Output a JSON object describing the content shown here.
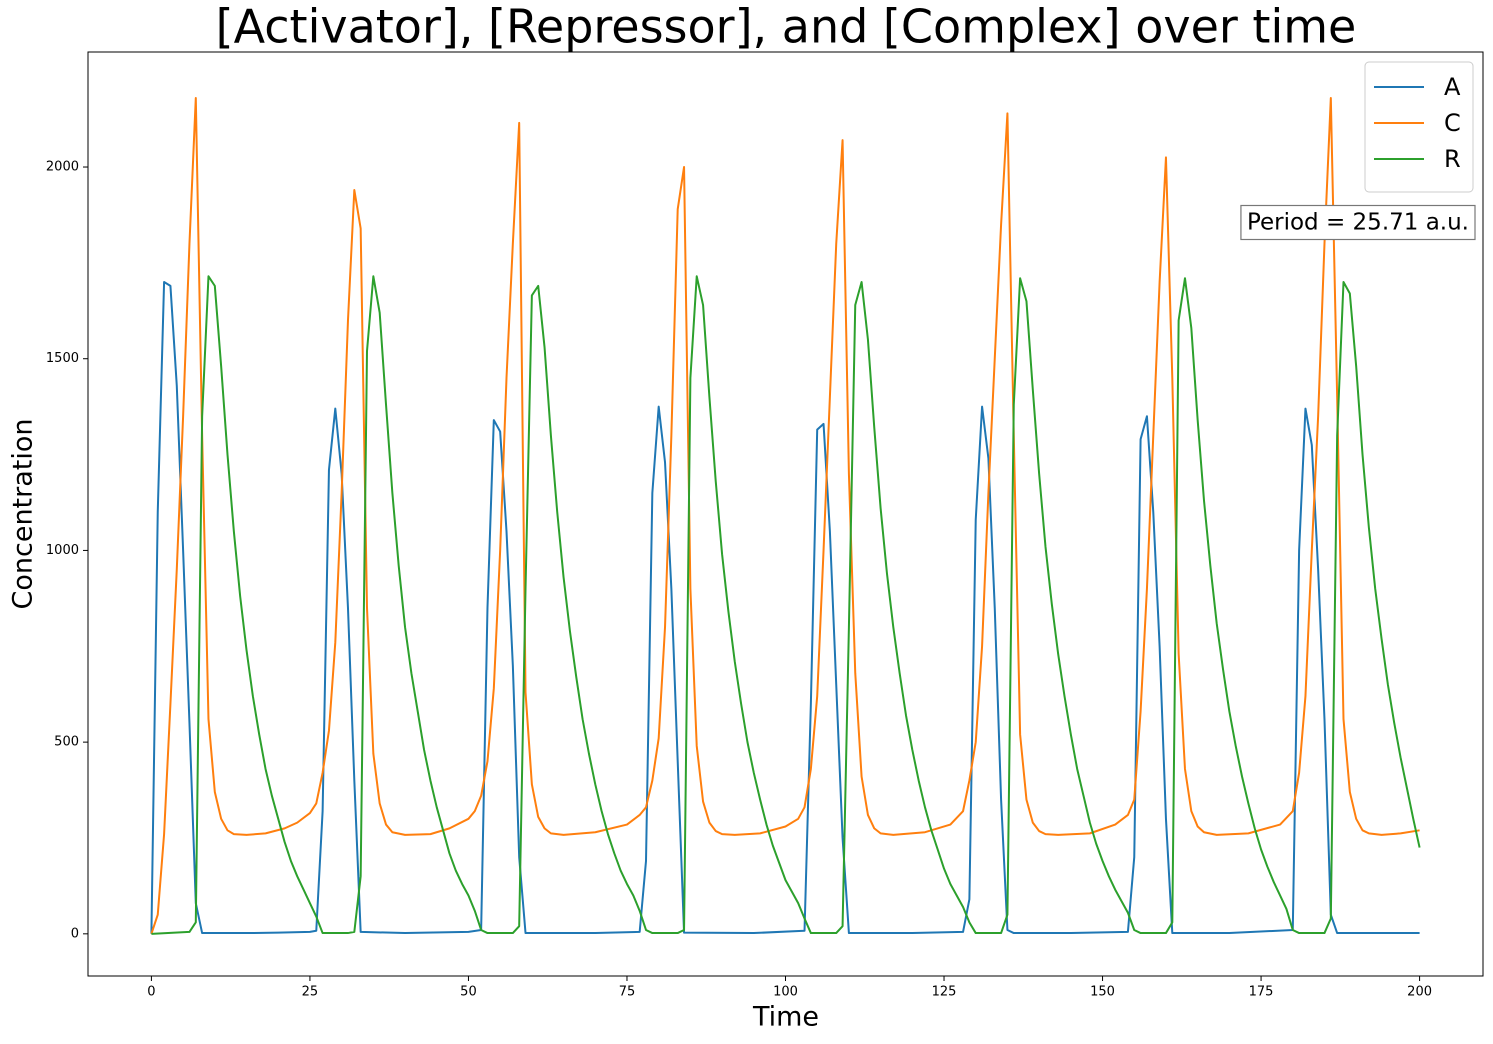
{
  "chart_data": {
    "type": "line",
    "title": "[Activator], [Repressor], and [Complex] over time",
    "xlabel": "Time",
    "ylabel": "Concentration",
    "annotation": "Period = 25.71 a.u.",
    "legend": "upper right",
    "xlim": [
      -10,
      210
    ],
    "ylim": [
      -110,
      2300
    ],
    "xticks": [
      0,
      25,
      50,
      75,
      100,
      125,
      150,
      175,
      200
    ],
    "yticks": [
      0,
      500,
      1000,
      1500,
      2000
    ],
    "series": [
      {
        "name": "A",
        "color": "#1f77b4",
        "x": [
          0,
          1,
          2,
          3,
          4,
          5,
          6,
          7,
          8,
          15,
          20,
          25,
          26,
          27,
          28,
          29,
          30,
          31,
          32,
          33,
          40,
          50,
          52,
          53,
          54,
          55,
          56,
          57,
          58,
          59,
          70,
          77,
          78,
          79,
          80,
          81,
          82,
          83,
          84,
          95,
          103,
          104,
          105,
          106,
          107,
          108,
          109,
          110,
          120,
          128,
          129,
          130,
          131,
          132,
          133,
          134,
          135,
          136,
          145,
          154,
          155,
          156,
          157,
          158,
          159,
          160,
          161,
          170,
          180,
          181,
          182,
          183,
          184,
          185,
          186,
          187,
          200
        ],
        "values": [
          0,
          1100,
          1700,
          1690,
          1430,
          1000,
          550,
          80,
          2,
          2,
          3,
          5,
          8,
          320,
          1210,
          1370,
          1200,
          850,
          400,
          5,
          2,
          5,
          10,
          850,
          1340,
          1310,
          1050,
          700,
          200,
          2,
          2,
          5,
          190,
          1150,
          1375,
          1230,
          900,
          450,
          3,
          2,
          8,
          600,
          1315,
          1330,
          1050,
          650,
          250,
          2,
          2,
          5,
          90,
          1080,
          1375,
          1240,
          850,
          350,
          10,
          2,
          2,
          5,
          200,
          1290,
          1350,
          1100,
          750,
          300,
          2,
          2,
          10,
          1000,
          1370,
          1275,
          950,
          560,
          50,
          2,
          2
        ]
      },
      {
        "name": "C",
        "color": "#ff7f0e",
        "x": [
          0,
          1,
          2,
          3,
          4,
          5,
          6,
          7,
          8,
          9,
          10,
          11,
          12,
          13,
          15,
          18,
          21,
          23,
          25,
          26,
          27,
          28,
          29,
          30,
          31,
          32,
          33,
          34,
          35,
          36,
          37,
          38,
          40,
          44,
          47,
          50,
          51,
          52,
          53,
          54,
          55,
          56,
          57,
          58,
          59,
          60,
          61,
          62,
          63,
          65,
          70,
          75,
          77,
          78,
          79,
          80,
          81,
          82,
          83,
          84,
          85,
          86,
          87,
          88,
          89,
          90,
          92,
          96,
          100,
          102,
          103,
          104,
          105,
          106,
          107,
          108,
          109,
          110,
          111,
          112,
          113,
          114,
          115,
          117,
          122,
          126,
          128,
          129,
          130,
          131,
          132,
          133,
          134,
          135,
          136,
          137,
          138,
          139,
          140,
          141,
          143,
          148,
          152,
          154,
          155,
          156,
          157,
          158,
          159,
          160,
          161,
          162,
          163,
          164,
          165,
          166,
          168,
          173,
          178,
          180,
          181,
          182,
          183,
          184,
          185,
          186,
          187,
          188,
          189,
          190,
          191,
          192,
          194,
          197,
          200
        ],
        "values": [
          0,
          50,
          260,
          600,
          950,
          1350,
          1800,
          2180,
          1300,
          560,
          370,
          300,
          270,
          260,
          258,
          262,
          275,
          290,
          315,
          340,
          420,
          530,
          760,
          1150,
          1600,
          1940,
          1840,
          850,
          470,
          340,
          285,
          265,
          258,
          260,
          275,
          300,
          320,
          360,
          450,
          640,
          1000,
          1450,
          1800,
          2115,
          630,
          390,
          305,
          275,
          262,
          258,
          265,
          285,
          310,
          330,
          400,
          510,
          800,
          1300,
          1890,
          2000,
          900,
          490,
          345,
          290,
          268,
          260,
          258,
          262,
          280,
          300,
          330,
          430,
          620,
          1000,
          1400,
          1800,
          2070,
          1200,
          680,
          410,
          310,
          275,
          262,
          258,
          265,
          285,
          320,
          400,
          500,
          750,
          1150,
          1500,
          1850,
          2140,
          1300,
          520,
          350,
          290,
          268,
          260,
          258,
          262,
          285,
          310,
          350,
          580,
          900,
          1300,
          1700,
          2025,
          1450,
          730,
          430,
          320,
          280,
          265,
          258,
          262,
          285,
          320,
          420,
          620,
          1000,
          1350,
          1800,
          2180,
          1400,
          560,
          370,
          300,
          270,
          262,
          258,
          262,
          270
        ]
      },
      {
        "name": "R",
        "color": "#2ca02c",
        "x": [
          0,
          6,
          7,
          8,
          9,
          10,
          11,
          12,
          13,
          14,
          15,
          16,
          17,
          18,
          19,
          20,
          21,
          22,
          23,
          24,
          25,
          26,
          27,
          31,
          32,
          33,
          34,
          35,
          36,
          37,
          38,
          39,
          40,
          41,
          42,
          43,
          44,
          45,
          46,
          47,
          48,
          49,
          50,
          51,
          52,
          53,
          57,
          58,
          59,
          60,
          61,
          62,
          63,
          64,
          65,
          66,
          67,
          68,
          69,
          70,
          71,
          72,
          73,
          74,
          75,
          76,
          77,
          78,
          79,
          83,
          84,
          85,
          86,
          87,
          88,
          89,
          90,
          91,
          92,
          93,
          94,
          95,
          96,
          97,
          98,
          99,
          100,
          101,
          102,
          103,
          104,
          108,
          109,
          110,
          111,
          112,
          113,
          114,
          115,
          116,
          117,
          118,
          119,
          120,
          121,
          122,
          123,
          124,
          125,
          126,
          127,
          128,
          129,
          130,
          134,
          135,
          136,
          137,
          138,
          139,
          140,
          141,
          142,
          143,
          144,
          145,
          146,
          147,
          148,
          149,
          150,
          151,
          152,
          153,
          154,
          155,
          156,
          160,
          161,
          162,
          163,
          164,
          165,
          166,
          167,
          168,
          169,
          170,
          171,
          172,
          173,
          174,
          175,
          176,
          177,
          178,
          179,
          180,
          181,
          185,
          186,
          187,
          188,
          189,
          190,
          191,
          192,
          193,
          194,
          195,
          196,
          197,
          198,
          199,
          200
        ],
        "values": [
          0,
          5,
          30,
          1350,
          1715,
          1690,
          1480,
          1250,
          1050,
          880,
          740,
          620,
          520,
          430,
          360,
          300,
          240,
          190,
          150,
          115,
          80,
          45,
          2,
          2,
          5,
          150,
          1520,
          1715,
          1620,
          1380,
          1150,
          960,
          800,
          680,
          580,
          480,
          400,
          330,
          270,
          210,
          165,
          130,
          100,
          60,
          10,
          2,
          2,
          20,
          900,
          1665,
          1690,
          1530,
          1300,
          1100,
          930,
          790,
          670,
          560,
          470,
          390,
          320,
          260,
          210,
          165,
          130,
          100,
          60,
          10,
          2,
          2,
          10,
          1450,
          1715,
          1640,
          1400,
          1180,
          990,
          840,
          710,
          600,
          500,
          420,
          350,
          285,
          230,
          185,
          140,
          110,
          80,
          40,
          2,
          2,
          20,
          800,
          1640,
          1700,
          1550,
          1320,
          1110,
          940,
          800,
          680,
          570,
          480,
          400,
          330,
          270,
          220,
          170,
          130,
          100,
          70,
          30,
          2,
          2,
          50,
          1380,
          1710,
          1650,
          1420,
          1200,
          1010,
          860,
          730,
          620,
          520,
          430,
          360,
          290,
          235,
          190,
          150,
          115,
          85,
          55,
          10,
          2,
          2,
          30,
          1600,
          1710,
          1580,
          1340,
          1130,
          960,
          810,
          690,
          580,
          490,
          410,
          340,
          275,
          220,
          175,
          135,
          100,
          65,
          10,
          2,
          2,
          40,
          1300,
          1700,
          1670,
          1480,
          1250,
          1060,
          900,
          770,
          650,
          550,
          460,
          380,
          300,
          225
        ]
      }
    ]
  }
}
